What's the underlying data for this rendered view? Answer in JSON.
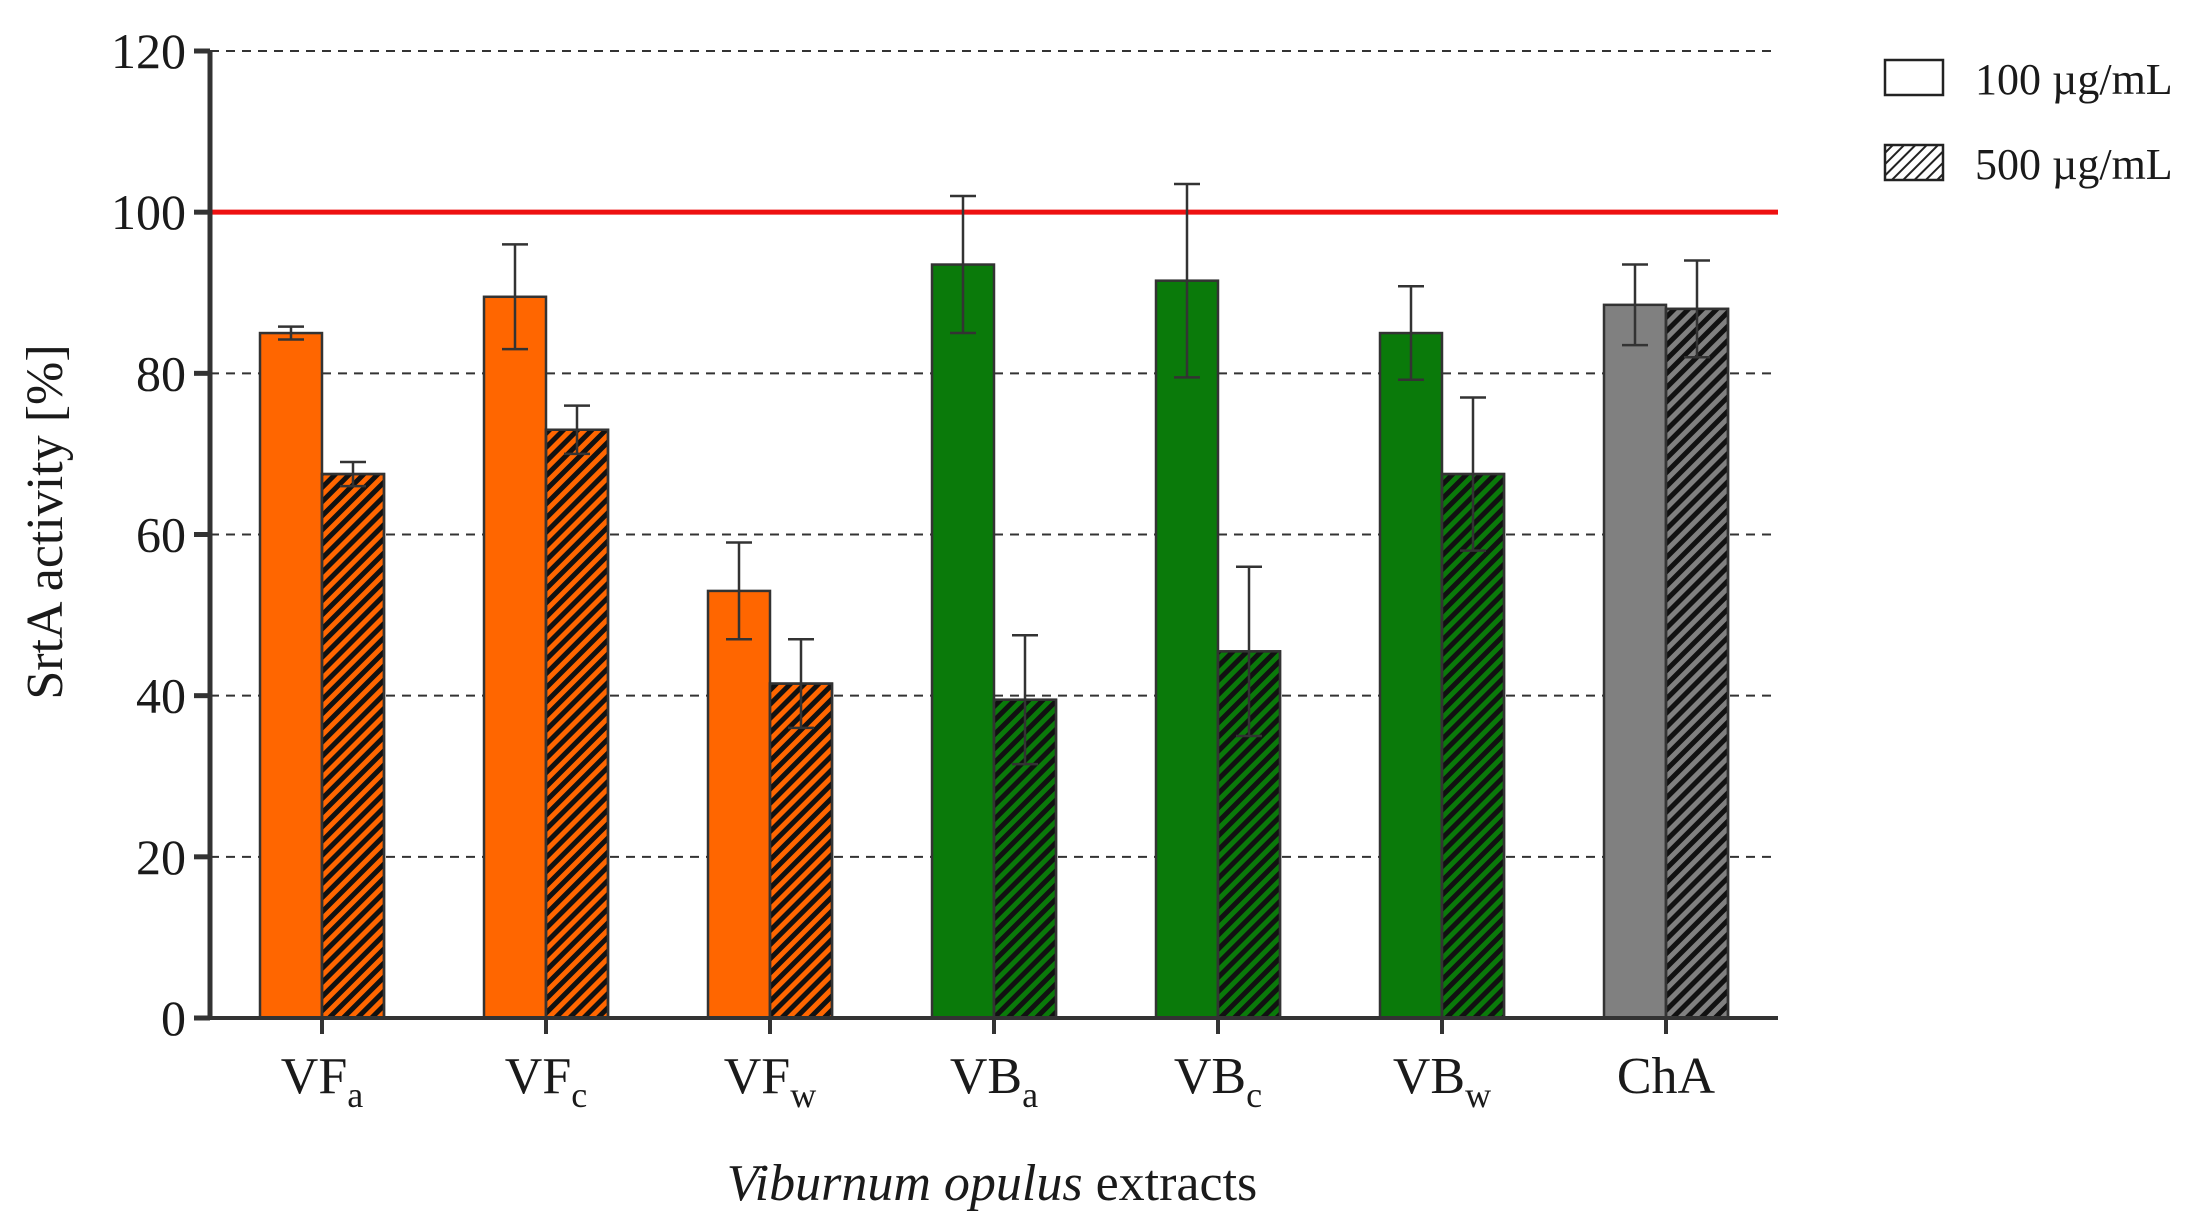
{
  "chart_data": {
    "type": "bar",
    "title": "",
    "xlabel_italic": "Viburnum opulus",
    "xlabel_rest": " extracts",
    "ylabel": "SrtA activity [%]",
    "ylim": [
      0,
      120
    ],
    "yticks": [
      0,
      20,
      40,
      60,
      80,
      100,
      120
    ],
    "grid": true,
    "reference_line": {
      "value": 100,
      "color": "#ee1111"
    },
    "categories": [
      {
        "main": "VF",
        "sub": "a",
        "color": "#ff6600"
      },
      {
        "main": "VF",
        "sub": "c",
        "color": "#ff6600"
      },
      {
        "main": "VF",
        "sub": "w",
        "color": "#ff6600"
      },
      {
        "main": "VB",
        "sub": "a",
        "color": "#0a7a0a"
      },
      {
        "main": "VB",
        "sub": "c",
        "color": "#0a7a0a"
      },
      {
        "main": "VB",
        "sub": "w",
        "color": "#0a7a0a"
      },
      {
        "main": "ChA",
        "sub": "",
        "color": "#808080"
      }
    ],
    "series": [
      {
        "name": "100 µg/mL",
        "pattern": "solid",
        "values": [
          85,
          89.5,
          53,
          93.5,
          91.5,
          85,
          88.5
        ],
        "errors": [
          0.8,
          6.5,
          6,
          8.5,
          12,
          5.8,
          5
        ]
      },
      {
        "name": "500 µg/mL",
        "pattern": "hatched",
        "values": [
          67.5,
          73,
          41.5,
          39.5,
          45.5,
          67.5,
          88
        ],
        "errors": [
          1.5,
          3,
          5.5,
          8,
          10.5,
          9.5,
          6
        ]
      }
    ],
    "legend_position": "top-right"
  }
}
